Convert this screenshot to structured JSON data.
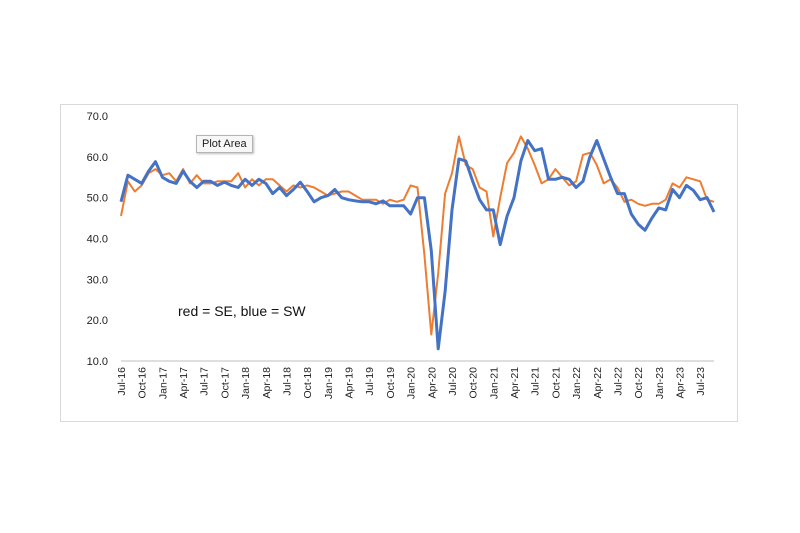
{
  "tooltip": {
    "text": "Plot Area"
  },
  "chart_data": {
    "type": "line",
    "title": "",
    "xlabel": "",
    "ylabel": "",
    "ylim": [
      10,
      70
    ],
    "yticks": [
      "10.0",
      "20.0",
      "30.0",
      "40.0",
      "50.0",
      "60.0",
      "70.0"
    ],
    "grid": false,
    "legend": "none",
    "annotation": "red = SE, blue = SW",
    "x_tick_labels": [
      "Jul-16",
      "Oct-16",
      "Jan-17",
      "Apr-17",
      "Jul-17",
      "Oct-17",
      "Jan-18",
      "Apr-18",
      "Jul-18",
      "Oct-18",
      "Jan-19",
      "Apr-19",
      "Jul-19",
      "Oct-19",
      "Jan-20",
      "Apr-20",
      "Jul-20",
      "Oct-20",
      "Jan-21",
      "Apr-21",
      "Jul-21",
      "Oct-21",
      "Jan-22",
      "Apr-22",
      "Jul-22",
      "Oct-22",
      "Jan-23",
      "Apr-23",
      "Jul-23"
    ],
    "tick_every": 3,
    "series": [
      {
        "color": "#4472c4",
        "values": [
          49.0,
          55.5,
          54.5,
          53.5,
          56.5,
          58.8,
          55.0,
          54.0,
          53.5,
          56.5,
          54.0,
          52.5,
          54.0,
          54.0,
          53.0,
          53.8,
          53.0,
          52.5,
          54.5,
          53.0,
          54.5,
          53.5,
          51.0,
          52.5,
          50.5,
          52.0,
          53.8,
          51.5,
          49.0,
          50.0,
          50.5,
          52.0,
          50.0,
          49.5,
          49.2,
          49.0,
          49.0,
          48.5,
          49.2,
          48.0,
          48.0,
          48.0,
          46.0,
          50.0,
          50.0,
          37.0,
          13.0,
          27.0,
          47.0,
          59.5,
          59.0,
          54.0,
          49.5,
          47.0,
          47.0,
          38.5,
          45.5,
          50.0,
          59.0,
          64.0,
          61.5,
          62.0,
          54.5,
          54.5,
          55.0,
          54.5,
          52.5,
          54.0,
          60.0,
          64.0,
          59.5,
          55.0,
          51.0,
          51.0,
          46.0,
          43.5,
          42.0,
          45.0,
          47.5,
          47.0,
          52.0,
          50.0,
          53.0,
          51.8,
          49.5,
          50.0,
          46.5
        ]
      },
      {
        "color": "#ed7d31",
        "values": [
          45.5,
          54.0,
          51.5,
          53.0,
          56.0,
          57.0,
          55.5,
          56.0,
          54.0,
          57.0,
          53.5,
          55.5,
          53.5,
          53.5,
          54.0,
          54.0,
          54.0,
          56.0,
          52.5,
          54.5,
          53.0,
          54.5,
          54.5,
          53.0,
          51.5,
          53.0,
          52.5,
          53.0,
          52.5,
          51.5,
          50.5,
          51.0,
          51.5,
          51.5,
          50.5,
          49.5,
          49.5,
          49.5,
          48.5,
          49.5,
          49.0,
          49.5,
          53.0,
          52.5,
          36.0,
          16.5,
          31.5,
          51.0,
          56.0,
          65.0,
          58.0,
          57.0,
          52.5,
          51.5,
          40.5,
          50.0,
          58.5,
          61.0,
          65.0,
          62.0,
          58.0,
          53.5,
          54.5,
          57.0,
          55.0,
          53.0,
          54.0,
          60.5,
          61.0,
          58.0,
          53.5,
          54.5,
          52.5,
          49.0,
          49.5,
          48.5,
          48.0,
          48.5,
          48.5,
          49.5,
          53.5,
          52.5,
          55.0,
          54.5,
          54.0,
          49.5,
          49.0
        ]
      }
    ]
  }
}
